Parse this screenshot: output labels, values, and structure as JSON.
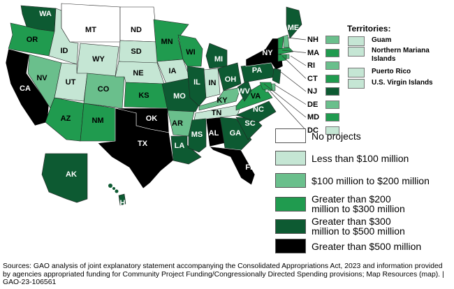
{
  "categories": [
    {
      "key": "none",
      "label": "No projects",
      "color": "#ffffff"
    },
    {
      "key": "lt100",
      "label": "Less than $100 million",
      "color": "#c5e6d4"
    },
    {
      "key": "100to200",
      "label": "$100 million to $200 million",
      "color": "#6abf8c"
    },
    {
      "key": "200to300",
      "label": "Greater than $200 million to $300 million",
      "color": "#209b4f"
    },
    {
      "key": "300to500",
      "label": "Greater than $300 million to $500 million",
      "color": "#0d5a32"
    },
    {
      "key": "gt500",
      "label": "Greater than $500 million",
      "color": "#000000"
    }
  ],
  "states": [
    {
      "abbr": "WA",
      "cat": "300to500"
    },
    {
      "abbr": "OR",
      "cat": "200to300"
    },
    {
      "abbr": "CA",
      "cat": "gt500"
    },
    {
      "abbr": "ID",
      "cat": "lt100"
    },
    {
      "abbr": "NV",
      "cat": "100to200"
    },
    {
      "abbr": "MT",
      "cat": "none"
    },
    {
      "abbr": "WY",
      "cat": "lt100"
    },
    {
      "abbr": "UT",
      "cat": "lt100"
    },
    {
      "abbr": "AZ",
      "cat": "200to300"
    },
    {
      "abbr": "CO",
      "cat": "100to200"
    },
    {
      "abbr": "NM",
      "cat": "200to300"
    },
    {
      "abbr": "ND",
      "cat": "none"
    },
    {
      "abbr": "SD",
      "cat": "lt100"
    },
    {
      "abbr": "NE",
      "cat": "lt100"
    },
    {
      "abbr": "KS",
      "cat": "200to300"
    },
    {
      "abbr": "OK",
      "cat": "gt500"
    },
    {
      "abbr": "TX",
      "cat": "gt500"
    },
    {
      "abbr": "MN",
      "cat": "200to300"
    },
    {
      "abbr": "IA",
      "cat": "lt100"
    },
    {
      "abbr": "MO",
      "cat": "300to500"
    },
    {
      "abbr": "AR",
      "cat": "100to200"
    },
    {
      "abbr": "LA",
      "cat": "300to500"
    },
    {
      "abbr": "WI",
      "cat": "200to300"
    },
    {
      "abbr": "IL",
      "cat": "300to500"
    },
    {
      "abbr": "MI",
      "cat": "300to500"
    },
    {
      "abbr": "IN",
      "cat": "lt100"
    },
    {
      "abbr": "OH",
      "cat": "300to500"
    },
    {
      "abbr": "KY",
      "cat": "100to200"
    },
    {
      "abbr": "TN",
      "cat": "lt100"
    },
    {
      "abbr": "MS",
      "cat": "300to500"
    },
    {
      "abbr": "AL",
      "cat": "gt500"
    },
    {
      "abbr": "GA",
      "cat": "300to500"
    },
    {
      "abbr": "FL",
      "cat": "gt500"
    },
    {
      "abbr": "SC",
      "cat": "300to500"
    },
    {
      "abbr": "NC",
      "cat": "300to500"
    },
    {
      "abbr": "VA",
      "cat": "200to300"
    },
    {
      "abbr": "WV",
      "cat": "300to500"
    },
    {
      "abbr": "PA",
      "cat": "300to500"
    },
    {
      "abbr": "NY",
      "cat": "gt500"
    },
    {
      "abbr": "ME",
      "cat": "300to500"
    },
    {
      "abbr": "VT",
      "cat": "200to300"
    },
    {
      "abbr": "AK",
      "cat": "300to500"
    },
    {
      "abbr": "HI",
      "cat": "300to500"
    }
  ],
  "small_states": [
    {
      "abbr": "NH",
      "cat": "100to200"
    },
    {
      "abbr": "MA",
      "cat": "200to300"
    },
    {
      "abbr": "RI",
      "cat": "100to200"
    },
    {
      "abbr": "CT",
      "cat": "200to300"
    },
    {
      "abbr": "NJ",
      "cat": "300to500"
    },
    {
      "abbr": "DE",
      "cat": "100to200"
    },
    {
      "abbr": "MD",
      "cat": "200to300"
    },
    {
      "abbr": "DC",
      "cat": "lt100"
    }
  ],
  "territories": {
    "title": "Territories:",
    "items": [
      {
        "name": "Guam",
        "cat": "lt100"
      },
      {
        "name": "Northern Mariana Islands",
        "cat": "lt100"
      },
      {
        "name": "Puerto Rico",
        "cat": "lt100"
      },
      {
        "name": "U.S. Virgin Islands",
        "cat": "lt100"
      }
    ]
  },
  "source": "Sources: GAO analysis of joint explanatory statement accompanying the Consolidated Appropriations Act, 2023 and information provided by agencies appropriated funding for Community Project Funding/Congressionally Directed Spending provisions; Map Resources (map).  |  GAO-23-106561"
}
